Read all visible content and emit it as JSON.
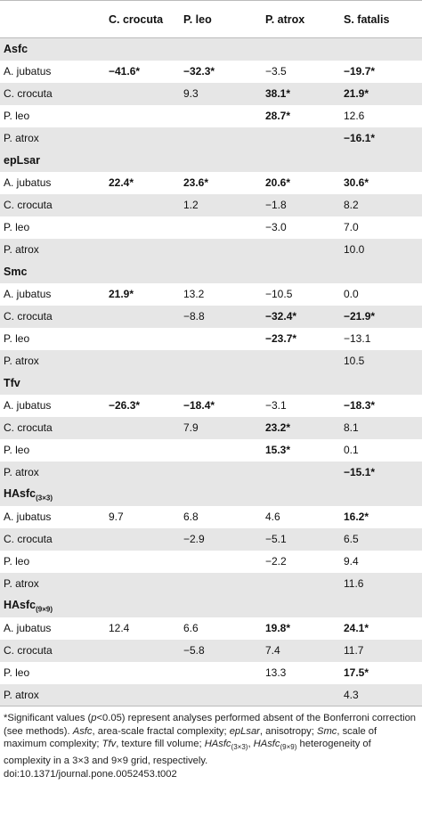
{
  "header": {
    "columns": [
      "",
      "C. crocuta",
      "P. leo",
      "P. atrox",
      "S. fatalis"
    ]
  },
  "sections": [
    {
      "title": "Asfc",
      "title_sub": "",
      "rows": [
        {
          "label": "A. jubatus",
          "cells": [
            {
              "v": "−41.6*",
              "b": true
            },
            {
              "v": "−32.3*",
              "b": true
            },
            {
              "v": "−3.5",
              "b": false
            },
            {
              "v": "−19.7*",
              "b": true
            }
          ]
        },
        {
          "label": "C. crocuta",
          "cells": [
            {
              "v": "",
              "b": false
            },
            {
              "v": "9.3",
              "b": false
            },
            {
              "v": "38.1*",
              "b": true
            },
            {
              "v": "21.9*",
              "b": true
            }
          ]
        },
        {
          "label": "P. leo",
          "cells": [
            {
              "v": "",
              "b": false
            },
            {
              "v": "",
              "b": false
            },
            {
              "v": "28.7*",
              "b": true
            },
            {
              "v": "12.6",
              "b": false
            }
          ]
        },
        {
          "label": "P. atrox",
          "cells": [
            {
              "v": "",
              "b": false
            },
            {
              "v": "",
              "b": false
            },
            {
              "v": "",
              "b": false
            },
            {
              "v": "−16.1*",
              "b": true
            }
          ]
        }
      ]
    },
    {
      "title": "epLsar",
      "title_sub": "",
      "rows": [
        {
          "label": "A. jubatus",
          "cells": [
            {
              "v": "22.4*",
              "b": true
            },
            {
              "v": "23.6*",
              "b": true
            },
            {
              "v": "20.6*",
              "b": true
            },
            {
              "v": "30.6*",
              "b": true
            }
          ]
        },
        {
          "label": "C. crocuta",
          "cells": [
            {
              "v": "",
              "b": false
            },
            {
              "v": "1.2",
              "b": false
            },
            {
              "v": "−1.8",
              "b": false
            },
            {
              "v": "8.2",
              "b": false
            }
          ]
        },
        {
          "label": "P. leo",
          "cells": [
            {
              "v": "",
              "b": false
            },
            {
              "v": "",
              "b": false
            },
            {
              "v": "−3.0",
              "b": false
            },
            {
              "v": "7.0",
              "b": false
            }
          ]
        },
        {
          "label": "P. atrox",
          "cells": [
            {
              "v": "",
              "b": false
            },
            {
              "v": "",
              "b": false
            },
            {
              "v": "",
              "b": false
            },
            {
              "v": "10.0",
              "b": false
            }
          ]
        }
      ]
    },
    {
      "title": "Smc",
      "title_sub": "",
      "rows": [
        {
          "label": "A. jubatus",
          "cells": [
            {
              "v": "21.9*",
              "b": true
            },
            {
              "v": "13.2",
              "b": false
            },
            {
              "v": "−10.5",
              "b": false
            },
            {
              "v": "0.0",
              "b": false
            }
          ]
        },
        {
          "label": "C. crocuta",
          "cells": [
            {
              "v": "",
              "b": false
            },
            {
              "v": "−8.8",
              "b": false
            },
            {
              "v": "−32.4*",
              "b": true
            },
            {
              "v": "−21.9*",
              "b": true
            }
          ]
        },
        {
          "label": "P. leo",
          "cells": [
            {
              "v": "",
              "b": false
            },
            {
              "v": "",
              "b": false
            },
            {
              "v": "−23.7*",
              "b": true
            },
            {
              "v": "−13.1",
              "b": false
            }
          ]
        },
        {
          "label": "P. atrox",
          "cells": [
            {
              "v": "",
              "b": false
            },
            {
              "v": "",
              "b": false
            },
            {
              "v": "",
              "b": false
            },
            {
              "v": "10.5",
              "b": false
            }
          ]
        }
      ]
    },
    {
      "title": "Tfv",
      "title_sub": "",
      "rows": [
        {
          "label": "A. jubatus",
          "cells": [
            {
              "v": "−26.3*",
              "b": true
            },
            {
              "v": "−18.4*",
              "b": true
            },
            {
              "v": "−3.1",
              "b": false
            },
            {
              "v": "−18.3*",
              "b": true
            }
          ]
        },
        {
          "label": "C. crocuta",
          "cells": [
            {
              "v": "",
              "b": false
            },
            {
              "v": "7.9",
              "b": false
            },
            {
              "v": "23.2*",
              "b": true
            },
            {
              "v": "8.1",
              "b": false
            }
          ]
        },
        {
          "label": "P. leo",
          "cells": [
            {
              "v": "",
              "b": false
            },
            {
              "v": "",
              "b": false
            },
            {
              "v": "15.3*",
              "b": true
            },
            {
              "v": "0.1",
              "b": false
            }
          ]
        },
        {
          "label": "P. atrox",
          "cells": [
            {
              "v": "",
              "b": false
            },
            {
              "v": "",
              "b": false
            },
            {
              "v": "",
              "b": false
            },
            {
              "v": "−15.1*",
              "b": true
            }
          ]
        }
      ]
    },
    {
      "title": "HAsfc",
      "title_sub": "(3×3)",
      "rows": [
        {
          "label": "A. jubatus",
          "cells": [
            {
              "v": "9.7",
              "b": false
            },
            {
              "v": "6.8",
              "b": false
            },
            {
              "v": "4.6",
              "b": false
            },
            {
              "v": "16.2*",
              "b": true
            }
          ]
        },
        {
          "label": "C. crocuta",
          "cells": [
            {
              "v": "",
              "b": false
            },
            {
              "v": "−2.9",
              "b": false
            },
            {
              "v": "−5.1",
              "b": false
            },
            {
              "v": "6.5",
              "b": false
            }
          ]
        },
        {
          "label": "P. leo",
          "cells": [
            {
              "v": "",
              "b": false
            },
            {
              "v": "",
              "b": false
            },
            {
              "v": "−2.2",
              "b": false
            },
            {
              "v": "9.4",
              "b": false
            }
          ]
        },
        {
          "label": "P. atrox",
          "cells": [
            {
              "v": "",
              "b": false
            },
            {
              "v": "",
              "b": false
            },
            {
              "v": "",
              "b": false
            },
            {
              "v": "11.6",
              "b": false
            }
          ]
        }
      ]
    },
    {
      "title": "HAsfc",
      "title_sub": "(9×9)",
      "rows": [
        {
          "label": "A. jubatus",
          "cells": [
            {
              "v": "12.4",
              "b": false
            },
            {
              "v": "6.6",
              "b": false
            },
            {
              "v": "19.8*",
              "b": true
            },
            {
              "v": "24.1*",
              "b": true
            }
          ]
        },
        {
          "label": "C. crocuta",
          "cells": [
            {
              "v": "",
              "b": false
            },
            {
              "v": "−5.8",
              "b": false
            },
            {
              "v": "7.4",
              "b": false
            },
            {
              "v": "11.7",
              "b": false
            }
          ]
        },
        {
          "label": "P. leo",
          "cells": [
            {
              "v": "",
              "b": false
            },
            {
              "v": "",
              "b": false
            },
            {
              "v": "13.3",
              "b": false
            },
            {
              "v": "17.5*",
              "b": true
            }
          ]
        },
        {
          "label": "P. atrox",
          "cells": [
            {
              "v": "",
              "b": false
            },
            {
              "v": "",
              "b": false
            },
            {
              "v": "",
              "b": false
            },
            {
              "v": "4.3",
              "b": false
            }
          ]
        }
      ]
    }
  ],
  "footnote": {
    "p1": "*Significant values (",
    "p_sym": "p",
    "p2": "<0.05) represent analyses performed absent of the Bonferroni correction (see methods). ",
    "asfc": "Asfc",
    "asfc_def": ", area-scale fractal complexity; ",
    "eplsar": "epLsar",
    "eplsar_def": ", anisotropy; ",
    "smc": "Smc",
    "smc_def": ", scale of maximum complexity; ",
    "tfv": "Tfv",
    "tfv_def": ", texture fill volume; ",
    "hasfc": "HAsfc",
    "sub33": "(3×3)",
    "sep": ", ",
    "sub99": "(9×9)",
    "hasfc_def": " heterogeneity of complexity in a 3×3 and 9×9 grid, respectively.",
    "doi": "doi:10.1371/journal.pone.0052453.t002"
  }
}
